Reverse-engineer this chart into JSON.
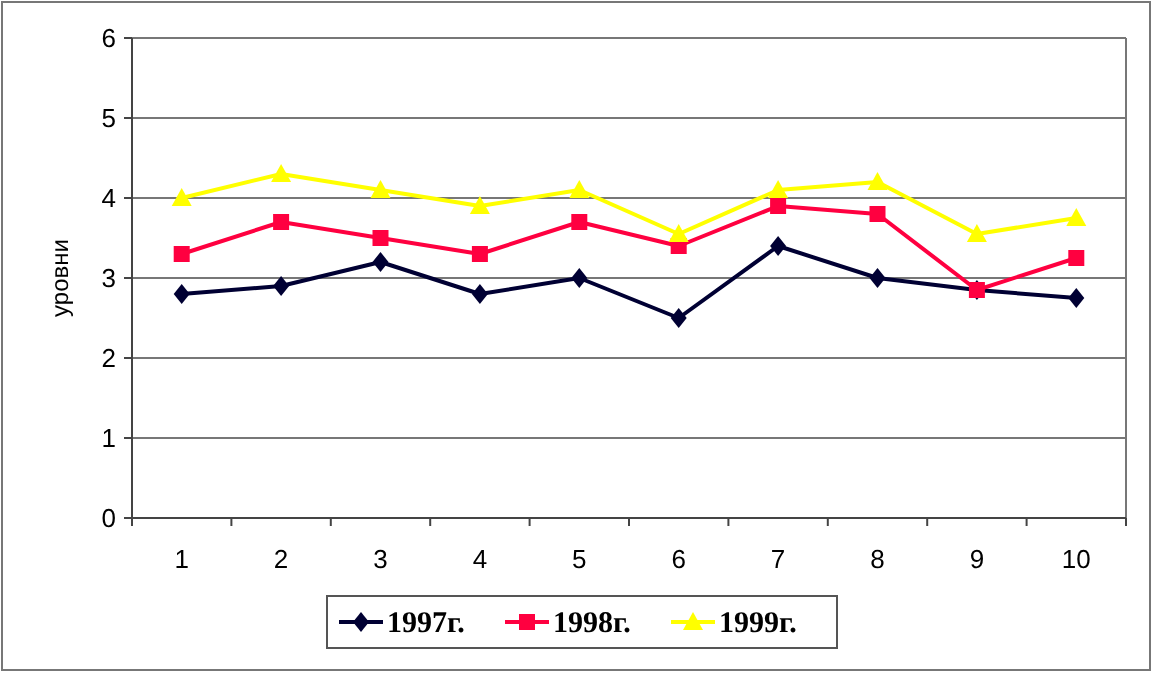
{
  "chart_data": {
    "type": "line",
    "ylabel": "уровни",
    "categories": [
      "1",
      "2",
      "3",
      "4",
      "5",
      "6",
      "7",
      "8",
      "9",
      "10"
    ],
    "series": [
      {
        "name": "1997г.",
        "color": "#000033",
        "marker": "diamond",
        "values": [
          2.8,
          2.9,
          3.2,
          2.8,
          3.0,
          2.5,
          3.4,
          3.0,
          2.85,
          2.75
        ]
      },
      {
        "name": "1998г.",
        "color": "#ff0040",
        "marker": "square",
        "values": [
          3.3,
          3.7,
          3.5,
          3.3,
          3.7,
          3.4,
          3.9,
          3.8,
          2.85,
          3.25
        ]
      },
      {
        "name": "1999г.",
        "color": "#ffff00",
        "marker": "triangle",
        "values": [
          4.0,
          4.3,
          4.1,
          3.9,
          4.1,
          3.55,
          4.1,
          4.2,
          3.55,
          3.75
        ]
      }
    ],
    "ylim": [
      0,
      6
    ],
    "yticks": [
      0,
      1,
      2,
      3,
      4,
      5,
      6
    ],
    "grid": "y",
    "legend": "bottom",
    "line_style": "solid"
  }
}
